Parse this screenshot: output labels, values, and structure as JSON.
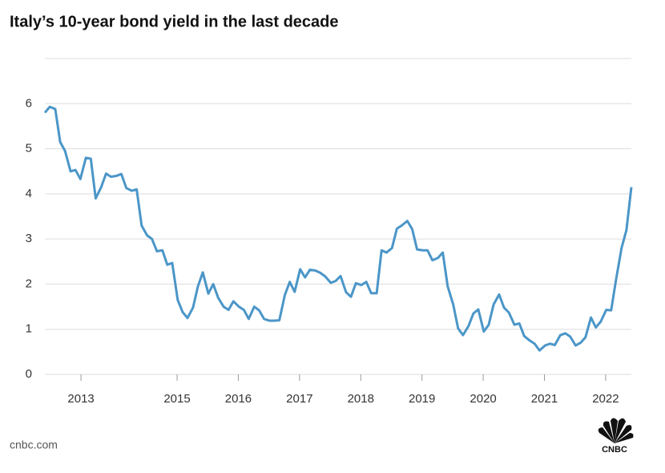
{
  "chart_data": {
    "type": "line",
    "title": "Italy’s 10-year bond yield in the last decade",
    "source": "cnbc.com",
    "logo": "CNBC",
    "x": [
      2012.84,
      2012.92,
      2013.01,
      2013.09,
      2013.17,
      2013.26,
      2013.34,
      2013.42,
      2013.51,
      2013.59,
      2013.67,
      2013.76,
      2013.84,
      2013.92,
      2014.01,
      2014.09,
      2014.17,
      2014.26,
      2014.34,
      2014.42,
      2014.51,
      2014.59,
      2014.67,
      2014.76,
      2014.84,
      2014.92,
      2015.01,
      2015.09,
      2015.17,
      2015.26,
      2015.34,
      2015.42,
      2015.51,
      2015.59,
      2015.67,
      2015.76,
      2015.84,
      2015.92,
      2016.01,
      2016.09,
      2016.17,
      2016.26,
      2016.34,
      2016.42,
      2016.51,
      2016.59,
      2016.67,
      2016.76,
      2016.84,
      2016.92,
      2017.01,
      2017.09,
      2017.17,
      2017.26,
      2017.34,
      2017.42,
      2017.51,
      2017.59,
      2017.67,
      2017.76,
      2017.84,
      2017.92,
      2018.01,
      2018.09,
      2018.17,
      2018.26,
      2018.34,
      2018.42,
      2018.51,
      2018.59,
      2018.67,
      2018.76,
      2018.84,
      2018.92,
      2019.01,
      2019.09,
      2019.17,
      2019.26,
      2019.34,
      2019.42,
      2019.51,
      2019.59,
      2019.67,
      2019.76,
      2019.84,
      2019.92,
      2020.01,
      2020.09,
      2020.17,
      2020.26,
      2020.34,
      2020.42,
      2020.51,
      2020.59,
      2020.67,
      2020.76,
      2020.84,
      2020.92,
      2021.01,
      2021.09,
      2021.17,
      2021.26,
      2021.34,
      2021.42,
      2021.51,
      2021.59,
      2021.67,
      2021.76,
      2021.84,
      2021.92,
      2022.01,
      2022.09,
      2022.17,
      2022.26,
      2022.34,
      2022.42
    ],
    "series": [
      {
        "name": "Italy 10-year yield",
        "color": "#4b96c8",
        "values": [
          5.8,
          5.93,
          5.88,
          5.15,
          4.95,
          4.5,
          4.53,
          4.33,
          4.8,
          4.78,
          3.9,
          4.15,
          4.45,
          4.38,
          4.4,
          4.44,
          4.13,
          4.07,
          4.1,
          3.3,
          3.08,
          3.0,
          2.73,
          2.75,
          2.43,
          2.47,
          1.65,
          1.38,
          1.25,
          1.48,
          1.95,
          2.26,
          1.79,
          2.0,
          1.7,
          1.5,
          1.43,
          1.62,
          1.5,
          1.43,
          1.23,
          1.5,
          1.42,
          1.23,
          1.19,
          1.19,
          1.2,
          1.76,
          2.05,
          1.83,
          2.33,
          2.15,
          2.32,
          2.3,
          2.25,
          2.17,
          2.03,
          2.07,
          2.18,
          1.82,
          1.72,
          2.02,
          1.98,
          2.05,
          1.8,
          1.8,
          2.75,
          2.7,
          2.8,
          3.23,
          3.3,
          3.4,
          3.22,
          2.77,
          2.75,
          2.75,
          2.53,
          2.58,
          2.7,
          1.95,
          1.55,
          1.02,
          0.87,
          1.07,
          1.35,
          1.44,
          0.95,
          1.1,
          1.55,
          1.77,
          1.48,
          1.37,
          1.1,
          1.13,
          0.85,
          0.75,
          0.68,
          0.53,
          0.64,
          0.68,
          0.65,
          0.87,
          0.91,
          0.84,
          0.64,
          0.7,
          0.82,
          1.26,
          1.04,
          1.17,
          1.43,
          1.42,
          2.1,
          2.8,
          3.2,
          4.15
        ]
      }
    ],
    "xlim": [
      2012.84,
      2022.42
    ],
    "xticks": [
      {
        "value": 2013.43,
        "label": "2013"
      },
      2015,
      2016,
      2017,
      2018,
      2019,
      2020,
      2021,
      2022
    ],
    "ylim": [
      0,
      7
    ],
    "yticks": [
      0,
      1,
      2,
      3,
      4,
      5,
      6
    ],
    "grid": true
  }
}
